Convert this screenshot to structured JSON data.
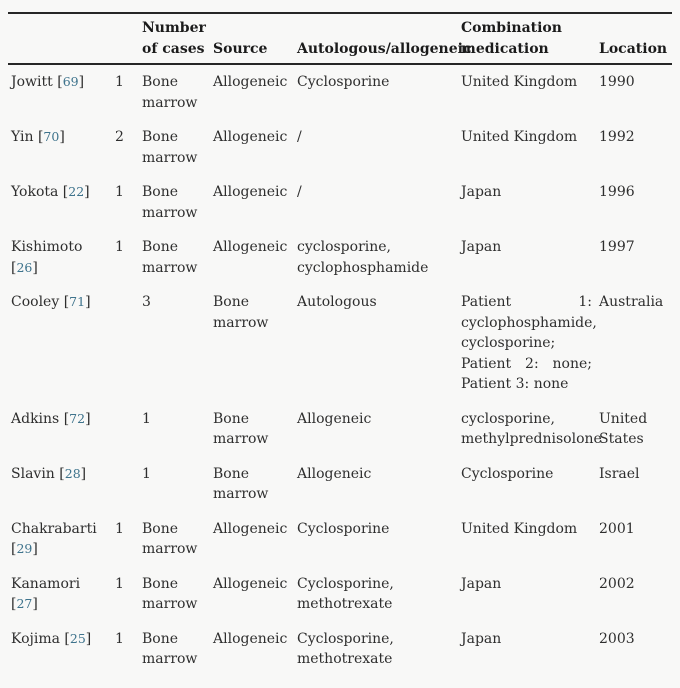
{
  "page": {
    "background": "#f8f8f7",
    "link_color": "#3e738c"
  },
  "symbols": {
    "bracket_open": "[",
    "bracket_close": "]"
  },
  "table": {
    "headers": {
      "cases": "Number of cases",
      "source": "Source",
      "type": "Autologous/allogeneic",
      "medication": "Combination medication",
      "location": "Location"
    },
    "rows": [
      {
        "author": "Jowitt",
        "ref": "69",
        "cols": [
          "1",
          "Bone marrow",
          "Allogeneic",
          "Cyclosporine",
          "United Kingdom",
          "1990"
        ]
      },
      {
        "author": "Yin",
        "ref": "70",
        "cols": [
          "2",
          "Bone marrow",
          "Allogeneic",
          "/",
          "United Kingdom",
          "1992"
        ]
      },
      {
        "author": "Yokota",
        "ref": "22",
        "cols": [
          "1",
          "Bone marrow",
          "Allogeneic",
          "/",
          "Japan",
          "1996"
        ]
      },
      {
        "author": "Kishimoto",
        "ref": "26",
        "cols": [
          "1",
          "Bone marrow",
          "Allogeneic",
          "cyclosporine, cyclophosphamide",
          "Japan",
          "1997"
        ]
      },
      {
        "author": "Cooley",
        "ref": "71",
        "cols": [
          "",
          "3",
          "Bone marrow",
          "Autologous",
          "Patient 1: cyclophosphamide, cyclosporine; Patient 2: none; Patient 3: none",
          "Australia"
        ]
      },
      {
        "author": "Adkins",
        "ref": "72",
        "cols": [
          "",
          "1",
          "Bone marrow",
          "Allogeneic",
          "cyclosporine, methylprednisolone",
          "United States"
        ]
      },
      {
        "author": "Slavin",
        "ref": "28",
        "cols": [
          "",
          "1",
          "Bone marrow",
          "Allogeneic",
          "Cyclosporine",
          "Israel"
        ]
      },
      {
        "author": "Chakrabarti",
        "ref": "29",
        "cols": [
          "1",
          "Bone marrow",
          "Allogeneic",
          "Cyclosporine",
          "United Kingdom",
          "2001"
        ]
      },
      {
        "author": "Kanamori",
        "ref": "27",
        "cols": [
          "1",
          "Bone marrow",
          "Allogeneic",
          "Cyclosporine, methotrexate",
          "Japan",
          "2002"
        ]
      },
      {
        "author": "Kojima",
        "ref": "25",
        "cols": [
          "1",
          "Bone marrow",
          "Allogeneic",
          "Cyclosporine, methotrexate",
          "Japan",
          "2003"
        ]
      }
    ]
  }
}
